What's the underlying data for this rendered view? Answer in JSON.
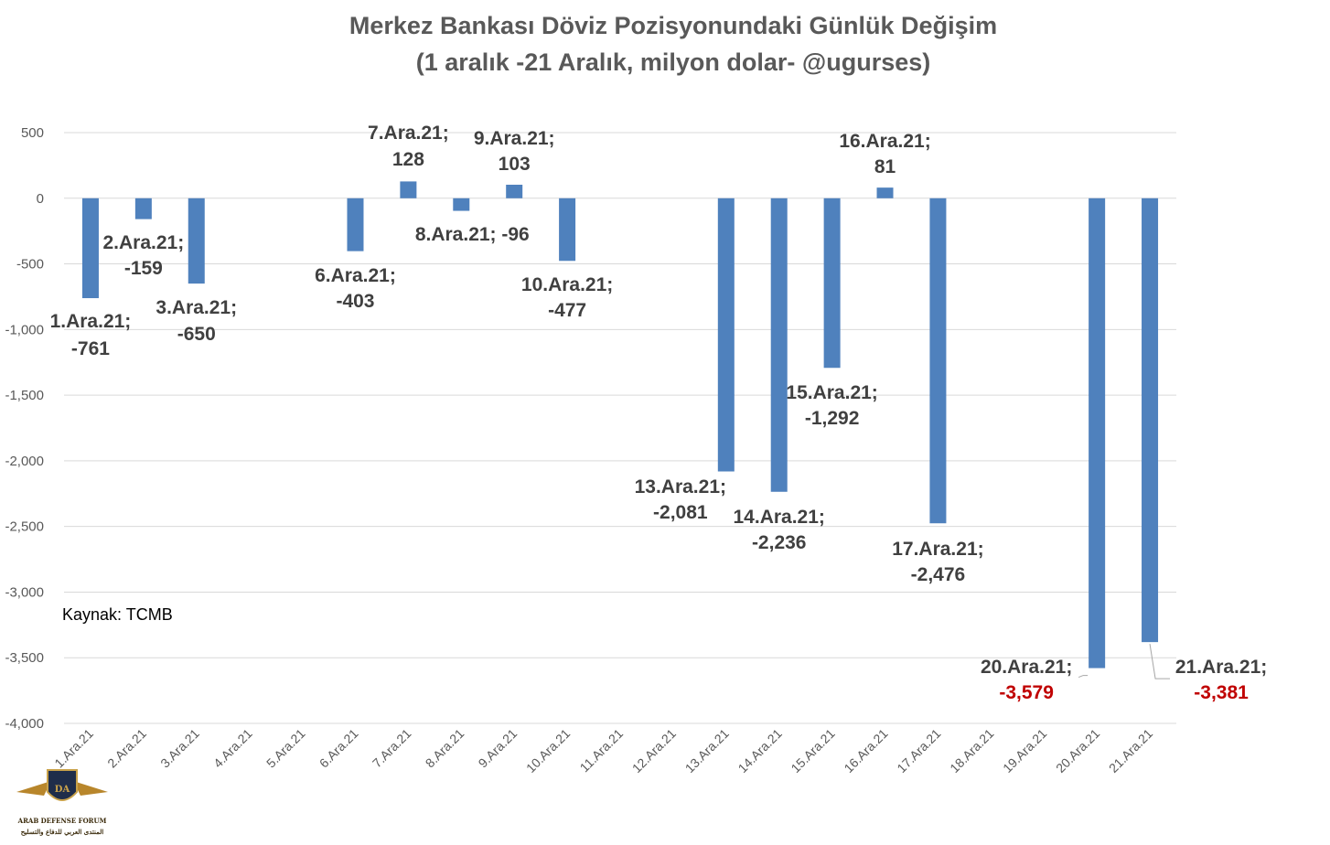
{
  "chart_data": {
    "type": "bar",
    "title": "Merkez Bankası Döviz Pozisyonundaki Günlük Değişim",
    "subtitle": "(1 aralık -21 Aralık, milyon dolar- @ugurses)",
    "source": "Kaynak: TCMB",
    "ylim": [
      -4000,
      500
    ],
    "yticks": [
      500,
      0,
      -500,
      -1000,
      -1500,
      -2000,
      -2500,
      -3000,
      -3500,
      -4000
    ],
    "ytick_labels": [
      "500",
      "0",
      "-500",
      "-1,000",
      "-1,500",
      "-2,000",
      "-2,500",
      "-3,000",
      "-3,500",
      "-4,000"
    ],
    "grid": true,
    "bar_color": "#4f81bd",
    "highlight_color": "#c00000",
    "categories": [
      "1.Ara.21",
      "2.Ara.21",
      "3.Ara.21",
      "4.Ara.21",
      "5.Ara.21",
      "6.Ara.21",
      "7.Ara.21",
      "8.Ara.21",
      "9.Ara.21",
      "10.Ara.21",
      "11.Ara.21",
      "12.Ara.21",
      "13.Ara.21",
      "14.Ara.21",
      "15.Ara.21",
      "16.Ara.21",
      "17.Ara.21",
      "18.Ara.21",
      "19.Ara.21",
      "20.Ara.21",
      "21.Ara.21"
    ],
    "values": [
      -761,
      -159,
      -650,
      null,
      null,
      -403,
      128,
      -96,
      103,
      -477,
      null,
      null,
      -2081,
      -2236,
      -1292,
      81,
      -2476,
      null,
      null,
      -3579,
      -3381
    ],
    "data_labels": [
      {
        "category": "1.Ara.21",
        "text_category": "1.Ara.21;",
        "text_value": "-761"
      },
      {
        "category": "2.Ara.21",
        "text_category": "2.Ara.21;",
        "text_value": "-159"
      },
      {
        "category": "3.Ara.21",
        "text_category": "3.Ara.21;",
        "text_value": "-650"
      },
      {
        "category": "6.Ara.21",
        "text_category": "6.Ara.21;",
        "text_value": "-403"
      },
      {
        "category": "7.Ara.21",
        "text_category": "7.Ara.21;",
        "text_value": "128"
      },
      {
        "category": "8.Ara.21",
        "text_category": "8.Ara.21; -96",
        "text_value": ""
      },
      {
        "category": "9.Ara.21",
        "text_category": "9.Ara.21;",
        "text_value": "103"
      },
      {
        "category": "10.Ara.21",
        "text_category": "10.Ara.21;",
        "text_value": "-477"
      },
      {
        "category": "13.Ara.21",
        "text_category": "13.Ara.21;",
        "text_value": "-2,081"
      },
      {
        "category": "14.Ara.21",
        "text_category": "14.Ara.21;",
        "text_value": "-2,236"
      },
      {
        "category": "15.Ara.21",
        "text_category": "15.Ara.21;",
        "text_value": "-1,292"
      },
      {
        "category": "16.Ara.21",
        "text_category": "16.Ara.21;",
        "text_value": "81"
      },
      {
        "category": "17.Ara.21",
        "text_category": "17.Ara.21;",
        "text_value": "-2,476"
      },
      {
        "category": "20.Ara.21",
        "text_category": "20.Ara.21;",
        "text_value": "-3,579",
        "highlight": true
      },
      {
        "category": "21.Ara.21",
        "text_category": "21.Ara.21;",
        "text_value": "-3,381",
        "highlight": true
      }
    ]
  },
  "watermark": {
    "logo_icon": "eagle-shield-icon",
    "text_en": "ARAB DEFENSE FORUM",
    "text_ar": "المنتدى العربي للدفاع والتسليح"
  }
}
